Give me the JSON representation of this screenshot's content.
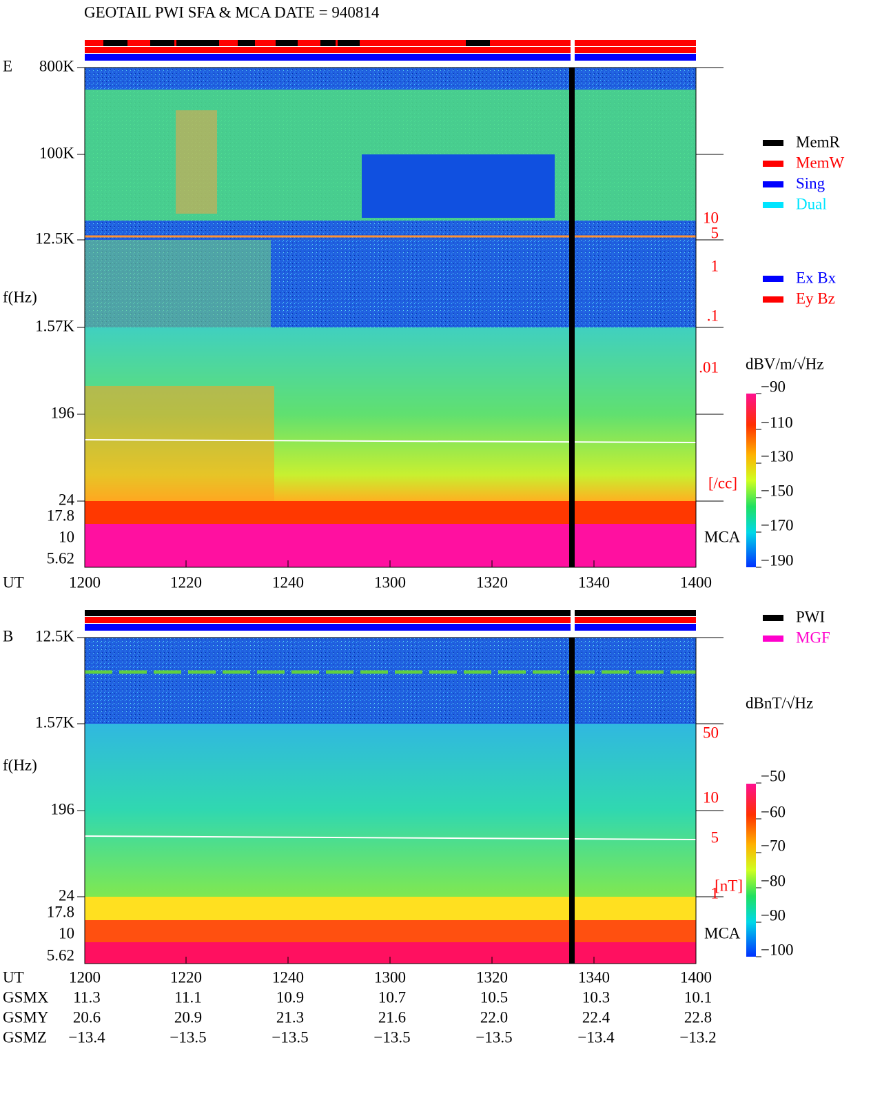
{
  "title": "GEOTAIL  PWI SFA & MCA   DATE = 940814",
  "panels": [
    {
      "component": "E",
      "y_label": "f(Hz)",
      "y_ticks": [
        "800K",
        "100K",
        "12.5K",
        "1.57K",
        "196",
        "24",
        "17.8",
        "10",
        "5.62"
      ],
      "right_labels": [
        "10",
        "5",
        "1",
        ".1",
        ".01",
        "[/cc]"
      ],
      "mca": "MCA",
      "colorbar": {
        "unit": "dBV/m/√Hz",
        "ticks": [
          "−90",
          "−110",
          "−130",
          "−150",
          "−170",
          "−190"
        ]
      }
    },
    {
      "component": "B",
      "y_label": "f(Hz)",
      "y_ticks": [
        "12.5K",
        "1.57K",
        "196",
        "24",
        "17.8",
        "10",
        "5.62"
      ],
      "right_labels": [
        "50",
        "10",
        "5",
        "1",
        "[nT]"
      ],
      "mca": "MCA",
      "colorbar": {
        "unit": "dBnT/√Hz",
        "ticks": [
          "−50",
          "−60",
          "−70",
          "−80",
          "−90",
          "−100"
        ]
      }
    }
  ],
  "legend_modes": [
    {
      "label": "MemR",
      "color": "#000000"
    },
    {
      "label": "MemW",
      "color": "#ff0000"
    },
    {
      "label": "Sing",
      "color": "#0000ff"
    },
    {
      "label": "Dual",
      "color": "#00e5ff"
    }
  ],
  "legend_components": [
    {
      "label": "Ex Bx",
      "color": "#0000ff"
    },
    {
      "label": "Ey Bz",
      "color": "#ff0000"
    }
  ],
  "legend_sources": [
    {
      "label": "PWI",
      "color": "#000000"
    },
    {
      "label": "MGF",
      "color": "#ff00cc"
    }
  ],
  "x_axis": {
    "label": "UT",
    "ticks": [
      "1200",
      "1220",
      "1240",
      "1300",
      "1320",
      "1340",
      "1400"
    ]
  },
  "orbit": [
    {
      "name": "GSMX",
      "values": [
        "11.3",
        "11.1",
        "10.9",
        "10.7",
        "10.5",
        "10.3",
        "10.1"
      ]
    },
    {
      "name": "GSMY",
      "values": [
        "20.6",
        "20.9",
        "21.3",
        "21.6",
        "22.0",
        "22.4",
        "22.8"
      ]
    },
    {
      "name": "GSMZ",
      "values": [
        "−13.4",
        "−13.5",
        "−13.5",
        "−13.5",
        "−13.5",
        "−13.4",
        "−13.2"
      ]
    }
  ]
}
